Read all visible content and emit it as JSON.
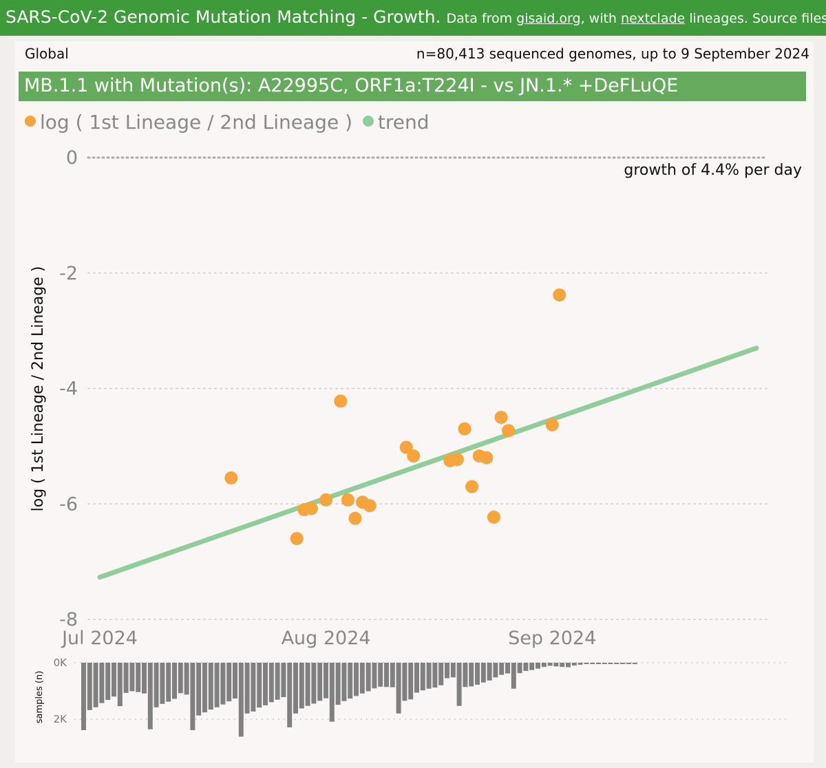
{
  "header": {
    "title": "SARS-CoV-2 Genomic Mutation Matching - Growth.",
    "sub_prefix": "Data from",
    "link1": "gisaid.org",
    "sub_mid": ", with",
    "link2": "nextclade",
    "sub_suffix": "lineages. Source files & info"
  },
  "region": "Global",
  "sample_info": "n=80,413 sequenced genomes, up to 9 September 2024",
  "banner": "MB.1.1 with Mutation(s): A22995C, ORF1a:T224I - vs JN.1.* +DeFLuQE",
  "growth_label": "growth of 4.4% per day",
  "colors": {
    "points": "#f7a43a",
    "trend": "#8fce9a",
    "bars": "#808080",
    "header": "#3e9a3a",
    "banner": "#66ab5d"
  },
  "chart_data": [
    {
      "type": "scatter",
      "title": "",
      "legend": [
        {
          "label": "log ( 1st Lineage / 2nd Lineage )",
          "color": "#f7a43a"
        },
        {
          "label": "trend",
          "color": "#8fce9a"
        }
      ],
      "xlabel": "",
      "ylabel": "log ( 1st Lineage / 2nd Lineage )",
      "x_ticks": [
        "Jul 2024",
        "Aug 2024",
        "Sep 2024"
      ],
      "xlim_days": [
        0,
        80
      ],
      "ylim": [
        -8,
        0
      ],
      "y_ticks": [
        0,
        -2,
        -4,
        -6,
        -8
      ],
      "grid": "horizontal dotted",
      "points": [
        {
          "day": 18,
          "y": -5.55
        },
        {
          "day": 27,
          "y": -6.6
        },
        {
          "day": 28,
          "y": -6.1
        },
        {
          "day": 29,
          "y": -6.08
        },
        {
          "day": 31,
          "y": -5.93
        },
        {
          "day": 33,
          "y": -4.22
        },
        {
          "day": 34,
          "y": -5.93
        },
        {
          "day": 35,
          "y": -6.25
        },
        {
          "day": 36,
          "y": -5.97
        },
        {
          "day": 37,
          "y": -6.03
        },
        {
          "day": 42,
          "y": -5.02
        },
        {
          "day": 43,
          "y": -5.17
        },
        {
          "day": 48,
          "y": -5.25
        },
        {
          "day": 49,
          "y": -5.23
        },
        {
          "day": 50,
          "y": -4.7
        },
        {
          "day": 51,
          "y": -5.7
        },
        {
          "day": 52,
          "y": -5.17
        },
        {
          "day": 53,
          "y": -5.2
        },
        {
          "day": 54,
          "y": -6.23
        },
        {
          "day": 55,
          "y": -4.5
        },
        {
          "day": 56,
          "y": -4.73
        },
        {
          "day": 62,
          "y": -4.63
        },
        {
          "day": 63,
          "y": -2.38
        }
      ],
      "trend": {
        "start": {
          "day": 0,
          "y": -7.27
        },
        "end": {
          "day": 90,
          "y": -3.3
        }
      }
    },
    {
      "type": "bar",
      "ylabel": "samples (n)",
      "y_ticks": [
        "0K",
        "2K"
      ],
      "ylim": [
        0,
        2500
      ],
      "values": [
        2390,
        1680,
        1580,
        1430,
        1320,
        1200,
        1540,
        1070,
        1010,
        1040,
        1090,
        2360,
        1580,
        1460,
        1380,
        1280,
        1080,
        1130,
        2390,
        1870,
        1760,
        1660,
        1580,
        1480,
        1370,
        1270,
        2620,
        1800,
        1730,
        1590,
        1510,
        1400,
        1310,
        1220,
        2290,
        1800,
        1620,
        1530,
        1450,
        1350,
        1260,
        2090,
        1490,
        1360,
        1270,
        1180,
        1090,
        1010,
        910,
        850,
        860,
        870,
        1800,
        1350,
        1300,
        1060,
        980,
        920,
        880,
        800,
        550,
        520,
        1530,
        860,
        840,
        780,
        700,
        630,
        520,
        430,
        380,
        920,
        370,
        290,
        260,
        210,
        150,
        110,
        130,
        150,
        160,
        100,
        70,
        40,
        30,
        30,
        20,
        20,
        10,
        10,
        10,
        10
      ]
    }
  ]
}
